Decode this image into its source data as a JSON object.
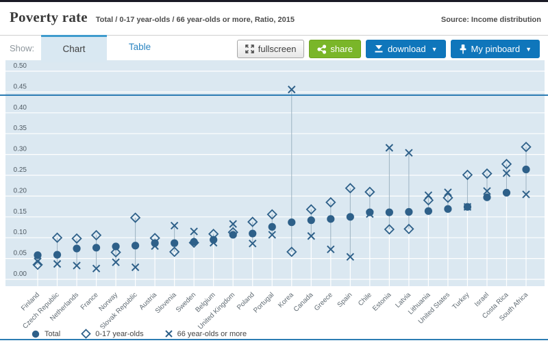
{
  "header": {
    "title": "Poverty rate",
    "subtitle": "Total / 0-17 year-olds / 66 year-olds or more, Ratio, 2015",
    "source": "Source: Income distribution"
  },
  "toolbar": {
    "show_label": "Show:",
    "tabs": [
      {
        "label": "Chart",
        "active": true
      },
      {
        "label": "Table",
        "active": false
      }
    ],
    "buttons": {
      "fullscreen": "fullscreen",
      "share": "share",
      "download": "download",
      "pinboard": "My pinboard",
      "caret": "▼"
    }
  },
  "chart_data": {
    "type": "scatter",
    "title": "Poverty rate",
    "unit": "Ratio",
    "year": "2015",
    "ylim": [
      0.0,
      0.5
    ],
    "ytick_step": 0.05,
    "grid": true,
    "legend_position": "bottom",
    "categories": [
      "Finland",
      "Czech Republic",
      "Netherlands",
      "France",
      "Norway",
      "Slovak Republic",
      "Austria",
      "Slovenia",
      "Sweden",
      "Belgium",
      "United Kingdom",
      "Poland",
      "Portugal",
      "Korea",
      "Canada",
      "Greece",
      "Spain",
      "Chile",
      "Estonia",
      "Latvia",
      "Lithuania",
      "United States",
      "Turkey",
      "Israel",
      "Costa Rica",
      "South Africa"
    ],
    "series": [
      {
        "name": "Total",
        "marker": "circle",
        "values": [
          0.058,
          0.059,
          0.074,
          0.076,
          0.079,
          0.081,
          0.087,
          0.087,
          0.09,
          0.095,
          0.107,
          0.11,
          0.126,
          0.137,
          0.142,
          0.145,
          0.15,
          0.161,
          0.161,
          0.162,
          0.164,
          0.169,
          0.174,
          0.197,
          0.208,
          0.264
        ]
      },
      {
        "name": "0-17 year-olds",
        "marker": "diamond",
        "values": [
          0.035,
          0.1,
          0.098,
          0.106,
          0.065,
          0.148,
          0.099,
          0.066,
          0.088,
          0.109,
          0.113,
          0.138,
          0.156,
          0.066,
          0.168,
          0.185,
          0.219,
          0.21,
          0.12,
          0.121,
          0.19,
          0.196,
          0.251,
          0.254,
          0.277,
          0.318
        ]
      },
      {
        "name": "66 year-olds or more",
        "marker": "x",
        "values": [
          0.043,
          0.037,
          0.033,
          0.026,
          0.041,
          0.029,
          0.08,
          0.129,
          0.115,
          0.088,
          0.133,
          0.086,
          0.107,
          0.456,
          0.104,
          0.072,
          0.054,
          0.157,
          0.316,
          0.304,
          0.202,
          0.209,
          0.174,
          0.212,
          0.255,
          0.204
        ]
      }
    ],
    "colors": {
      "marker": "#2e6089",
      "plot_background": "#dbe8f1",
      "gridline": "#ffffff",
      "connector": "#9cb2c2",
      "accent_blue": "#2b7cb3",
      "button_blue": "#0f76bb",
      "button_green": "#7ab629"
    }
  }
}
